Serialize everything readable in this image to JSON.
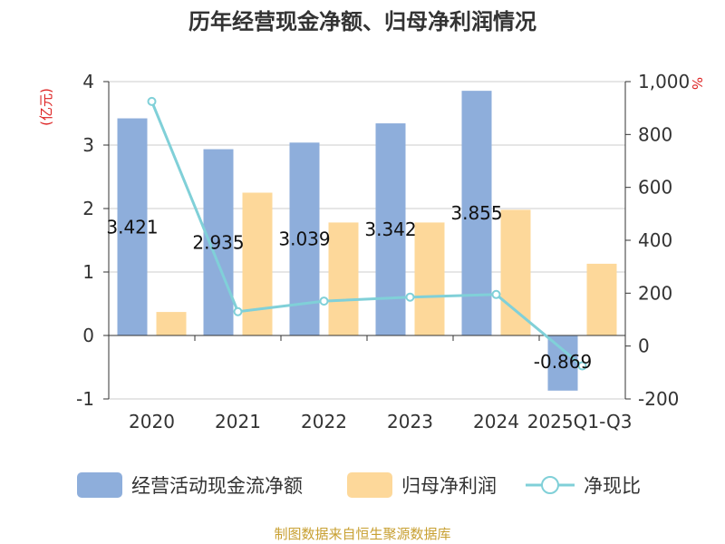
{
  "title": "历年经营现金净额、归母净利润情况",
  "source": "制图数据来自恒生聚源数据库",
  "chart_data": {
    "type": "bar",
    "categories": [
      "2020",
      "2021",
      "2022",
      "2023",
      "2024",
      "2025Q1-Q3"
    ],
    "y_left": {
      "unit": "(亿元)",
      "ylim": [
        -1,
        4
      ],
      "ticks": [
        -1,
        0,
        1,
        2,
        3,
        4
      ]
    },
    "y_right": {
      "unit": "%",
      "ylim": [
        -200,
        1000
      ],
      "ticks": [
        -200,
        0,
        200,
        400,
        600,
        800,
        1000
      ],
      "tick_labels": [
        "-200",
        "0",
        "200",
        "400",
        "600",
        "800",
        "1,000"
      ]
    },
    "grid": true,
    "legend_position": "bottom",
    "series": [
      {
        "name": "经营活动现金流净额",
        "type": "bar",
        "axis": "left",
        "color": "#8eaedb",
        "values": [
          3.421,
          2.935,
          3.039,
          3.342,
          3.855,
          -0.869
        ],
        "labels": [
          "3.421",
          "2.935",
          "3.039",
          "3.342",
          "3.855",
          "-0.869"
        ]
      },
      {
        "name": "归母净利润",
        "type": "bar",
        "axis": "left",
        "color": "#fdd89a",
        "values": [
          0.37,
          2.25,
          1.78,
          1.78,
          1.98,
          1.13
        ]
      },
      {
        "name": "净现比",
        "type": "line",
        "axis": "right",
        "color": "#80d0d8",
        "values": [
          925,
          130,
          170,
          185,
          195,
          -75
        ]
      }
    ]
  }
}
